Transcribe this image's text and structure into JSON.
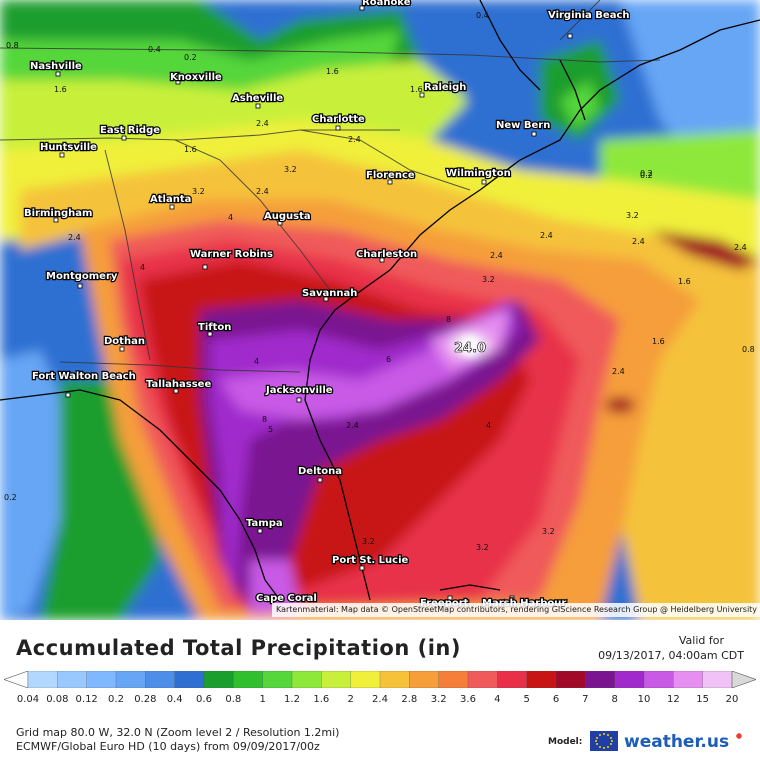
{
  "map": {
    "attribution": "Kartenmaterial: Map data © OpenStreetMap contributors, rendering GIScience Research Group @ Heidelberg University",
    "cities": [
      {
        "name": "Nashville"
      },
      {
        "name": "Knoxville"
      },
      {
        "name": "Asheville"
      },
      {
        "name": "Charlotte"
      },
      {
        "name": "Raleigh"
      },
      {
        "name": "Roanoke"
      },
      {
        "name": "Virginia Beach"
      },
      {
        "name": "New Bern"
      },
      {
        "name": "Wilmington"
      },
      {
        "name": "Florence"
      },
      {
        "name": "East Ridge"
      },
      {
        "name": "Huntsville"
      },
      {
        "name": "Birmingham"
      },
      {
        "name": "Atlanta"
      },
      {
        "name": "Augusta"
      },
      {
        "name": "Charleston"
      },
      {
        "name": "Warner Robins"
      },
      {
        "name": "Montgomery"
      },
      {
        "name": "Savannah"
      },
      {
        "name": "Dothan"
      },
      {
        "name": "Tifton"
      },
      {
        "name": "Fort Walton Beach"
      },
      {
        "name": "Tallahassee"
      },
      {
        "name": "Jacksonville"
      },
      {
        "name": "Deltona"
      },
      {
        "name": "Tampa"
      },
      {
        "name": "Port St. Lucie"
      },
      {
        "name": "Cape Coral"
      },
      {
        "name": "Freeport"
      },
      {
        "name": "Marsh Harbour"
      }
    ],
    "max_label": "24.0",
    "contour_labels": [
      "0.8",
      "0.4",
      "0.2",
      "1.6",
      "1.6",
      "0.4",
      "0.2",
      "2.4",
      "1.6",
      "2.4",
      "3.2",
      "2.4",
      "3.2",
      "2.4",
      "4",
      "4",
      "2.4",
      "2.4",
      "8",
      "8",
      "6",
      "5",
      "4",
      "3.2",
      "2.4",
      "1.6",
      "1.6",
      "2.4",
      "2.4",
      "3.2",
      "0.2",
      "0.8",
      "2.4",
      "4",
      "3.2",
      "3.2",
      "0.2",
      "3.2",
      "1.6"
    ]
  },
  "title": "Accumulated Total Precipitation (in)",
  "valid_for_label": "Valid for",
  "valid_for_value": "09/13/2017, 04:00am CDT",
  "legend": {
    "ticks": [
      "0.04",
      "0.08",
      "0.12",
      "0.2",
      "0.28",
      "0.4",
      "0.6",
      "0.8",
      "1",
      "1.2",
      "1.6",
      "2",
      "2.4",
      "2.8",
      "3.2",
      "3.6",
      "4",
      "5",
      "6",
      "7",
      "8",
      "10",
      "12",
      "15",
      "20"
    ],
    "colors": [
      "#b3d8ff",
      "#99c8ff",
      "#80b8ff",
      "#66a6f5",
      "#4d8fe8",
      "#2f6fd2",
      "#1a9e2e",
      "#2fbf2f",
      "#55d63a",
      "#8ee83a",
      "#c8f03a",
      "#f0f03a",
      "#f5c23a",
      "#f59e3a",
      "#f57f3a",
      "#f05a5a",
      "#e8304a",
      "#c81414",
      "#a00a28",
      "#7a1490",
      "#a02acc",
      "#c85ae6",
      "#e68ff0",
      "#f0c2f5",
      "#f5e6f7",
      "#d9d9d9"
    ]
  },
  "info": {
    "line1": "Grid map 80.0 W, 32.0 N (Zoom level 2 / Resolution 1.2mi)",
    "line2": "ECMWF/Global Euro HD (10 days) from 09/09/2017/00z"
  },
  "brand": {
    "model_label": "Model:",
    "name": "weather.us"
  }
}
